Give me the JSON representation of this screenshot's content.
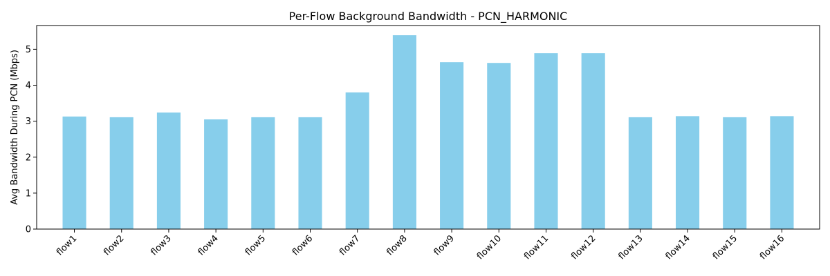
{
  "chart_data": {
    "type": "bar",
    "title": "Per-Flow Background Bandwidth - PCN_HARMONIC",
    "xlabel": "",
    "ylabel": "Avg Bandwidth During PCN (Mbps)",
    "categories": [
      "flow1",
      "flow2",
      "flow3",
      "flow4",
      "flow5",
      "flow6",
      "flow7",
      "flow8",
      "flow9",
      "flow10",
      "flow11",
      "flow12",
      "flow13",
      "flow14",
      "flow15",
      "flow16"
    ],
    "values": [
      3.13,
      3.11,
      3.24,
      3.05,
      3.11,
      3.11,
      3.8,
      5.39,
      4.64,
      4.62,
      4.89,
      4.89,
      3.11,
      3.14,
      3.11,
      3.14
    ],
    "ylim": [
      0,
      5.66
    ],
    "yticks": [
      0,
      1,
      2,
      3,
      4,
      5
    ],
    "bar_color": "#87ceeb",
    "grid": false,
    "legend": "none"
  }
}
